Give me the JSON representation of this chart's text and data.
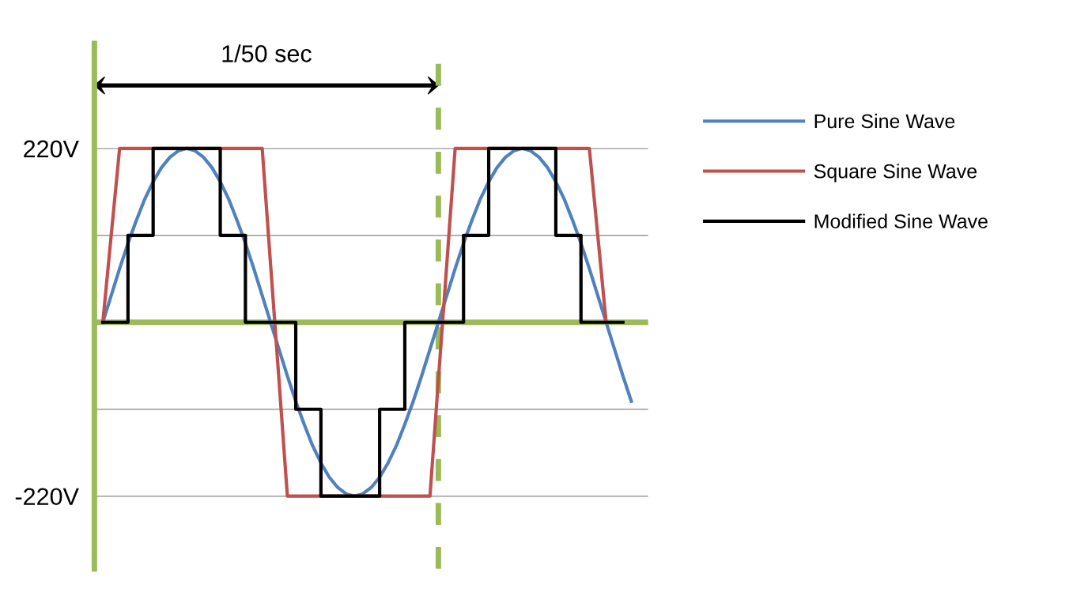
{
  "chart_data": {
    "type": "line",
    "annotations": [
      "1/50 sec"
    ],
    "categories": [
      null,
      null,
      null,
      null,
      null,
      null,
      null,
      null,
      null,
      null,
      null,
      null,
      null,
      null,
      null,
      null,
      null,
      null,
      null,
      null,
      null,
      null,
      null,
      null,
      null,
      null,
      null,
      null,
      null,
      null,
      null,
      null,
      null,
      null,
      null,
      null,
      null,
      null,
      null,
      null,
      null,
      null,
      null,
      null,
      null,
      null,
      null,
      null,
      null,
      null,
      null,
      null,
      null,
      null,
      null,
      null,
      null,
      null,
      null,
      null,
      null,
      null,
      null,
      null,
      null
    ],
    "series": [
      {
        "name": "Pure Sine Wave",
        "color": "#4f81bd",
        "values": [
          0,
          34,
          68,
          100,
          129,
          156,
          178,
          196,
          209,
          217,
          220,
          217,
          209,
          196,
          178,
          156,
          129,
          100,
          68,
          34,
          0,
          -34,
          -68,
          -100,
          -129,
          -156,
          -178,
          -196,
          -209,
          -217,
          -220,
          -217,
          -209,
          -196,
          -178,
          -156,
          -129,
          -100,
          -68,
          -34,
          0,
          34,
          68,
          100,
          129,
          156,
          178,
          196,
          209,
          217,
          220,
          217,
          209,
          196,
          178,
          156,
          129,
          100,
          68,
          34,
          0,
          -34,
          -68,
          -100,
          null
        ]
      },
      {
        "name": "Square Sine Wave",
        "color": "#c0504d",
        "values": [
          0,
          110,
          220,
          220,
          220,
          220,
          220,
          220,
          220,
          220,
          220,
          220,
          220,
          220,
          220,
          220,
          220,
          220,
          220,
          220,
          73,
          -73,
          -220,
          -220,
          -220,
          -220,
          -220,
          -220,
          -220,
          -220,
          -220,
          -220,
          -220,
          -220,
          -220,
          -220,
          -220,
          -220,
          -220,
          -220,
          -73,
          73,
          220,
          220,
          220,
          220,
          220,
          220,
          220,
          220,
          220,
          220,
          220,
          220,
          220,
          220,
          220,
          220,
          220,
          110,
          0,
          null,
          null,
          null,
          null
        ]
      },
      {
        "name": "Modified Sine Wave",
        "color": "#000000",
        "type": "step",
        "values": [
          0,
          0,
          0,
          110,
          110,
          110,
          220,
          220,
          220,
          220,
          220,
          220,
          220,
          220,
          110,
          110,
          110,
          0,
          0,
          0,
          0,
          0,
          0,
          -110,
          -110,
          -110,
          -220,
          -220,
          -220,
          -220,
          -220,
          -220,
          -220,
          -110,
          -110,
          -110,
          0,
          0,
          0,
          0,
          0,
          0,
          0,
          110,
          110,
          110,
          220,
          220,
          220,
          220,
          220,
          220,
          220,
          220,
          110,
          110,
          110,
          0,
          0,
          0,
          0,
          0,
          0,
          null,
          null
        ]
      }
    ],
    "ylim": [
      -312,
      353
    ],
    "yticks": [
      {
        "value": 220,
        "label": "220V"
      },
      {
        "value": 110,
        "label": null
      },
      {
        "value": 0,
        "label": null
      },
      {
        "value": -110,
        "label": null
      },
      {
        "value": -220,
        "label": "-220V"
      }
    ],
    "tick_labels": "y",
    "grid": "y",
    "legend": "right",
    "ref_lines": [
      {
        "axis": "y",
        "value": 0,
        "color": "#9bbb59",
        "line_style": "solid"
      }
    ]
  }
}
